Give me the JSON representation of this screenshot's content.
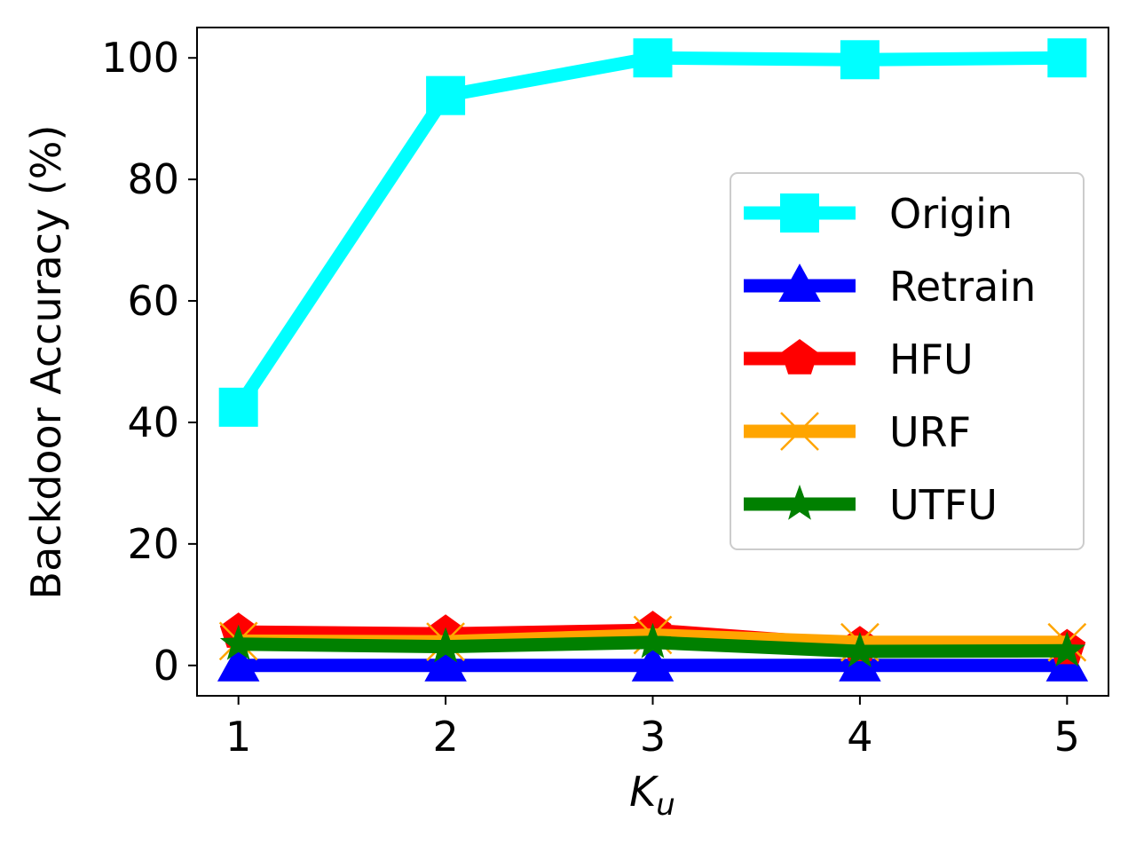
{
  "chart_data": {
    "type": "line",
    "x": [
      1,
      2,
      3,
      4,
      5
    ],
    "xlim": [
      0.8,
      5.2
    ],
    "ylim": [
      -5,
      105
    ],
    "xticks": [
      1,
      2,
      3,
      4,
      5
    ],
    "yticks": [
      0,
      20,
      40,
      60,
      80,
      100
    ],
    "ylabel": "Backdoor Accuracy (%)",
    "xlabel_main": "K",
    "xlabel_sub": "u",
    "grid": false,
    "legend_position": "center-right",
    "series": [
      {
        "name": "Origin",
        "color": "#00ffff",
        "marker": "square",
        "values": [
          42.5,
          93.8,
          100.0,
          99.7,
          100.0
        ]
      },
      {
        "name": "Retrain",
        "color": "#0000ff",
        "marker": "triangle",
        "values": [
          0.0,
          0.0,
          0.0,
          0.0,
          0.0
        ]
      },
      {
        "name": "HFU",
        "color": "#ff0000",
        "marker": "pentagon",
        "values": [
          5.5,
          5.2,
          5.8,
          3.3,
          2.8
        ]
      },
      {
        "name": "URF",
        "color": "#ffa500",
        "marker": "x",
        "values": [
          4.0,
          3.9,
          5.0,
          3.8,
          3.8
        ]
      },
      {
        "name": "UTFU",
        "color": "#008000",
        "marker": "star",
        "values": [
          3.5,
          3.1,
          3.8,
          2.3,
          2.4
        ]
      }
    ]
  }
}
